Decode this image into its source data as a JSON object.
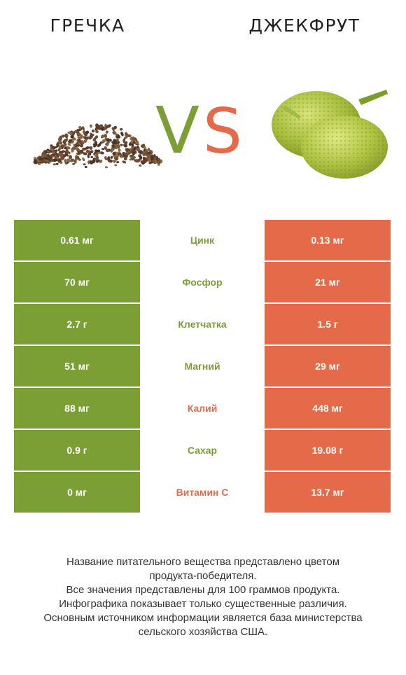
{
  "left_title": "ГРЕЧКА",
  "right_title": "ДЖЕКФРУТ",
  "vs": {
    "v": "V",
    "s": "S"
  },
  "colors": {
    "left": "#7c9f35",
    "right": "#e46a4a"
  },
  "rows": [
    {
      "left": "0.61 мг",
      "name": "Цинк",
      "right": "0.13 мг",
      "winner": "left"
    },
    {
      "left": "70 мг",
      "name": "Фосфор",
      "right": "21 мг",
      "winner": "left"
    },
    {
      "left": "2.7 г",
      "name": "Клетчатка",
      "right": "1.5 г",
      "winner": "left"
    },
    {
      "left": "51 мг",
      "name": "Магний",
      "right": "29 мг",
      "winner": "left"
    },
    {
      "left": "88 мг",
      "name": "Калий",
      "right": "448 мг",
      "winner": "right"
    },
    {
      "left": "0.9 г",
      "name": "Сахар",
      "right": "19.08 г",
      "winner": "left"
    },
    {
      "left": "0 мг",
      "name": "Витамин C",
      "right": "13.7 мг",
      "winner": "right"
    }
  ],
  "footer": [
    "Название питательного вещества представлено цветом",
    "продукта-победителя.",
    "Все значения представлены для 100 граммов продукта.",
    "Инфографика показывает только существенные различия.",
    "Основным источником информации является база министерства",
    "сельского хозяйства США."
  ]
}
